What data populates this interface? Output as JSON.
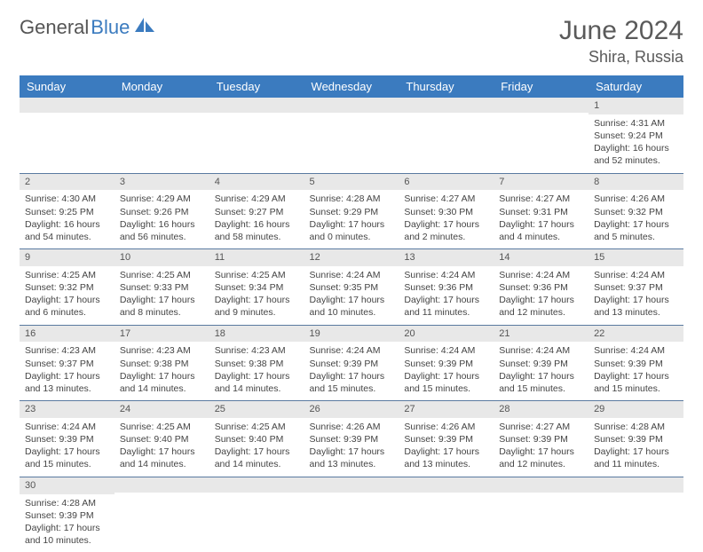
{
  "logo": {
    "text1": "General",
    "text2": "Blue"
  },
  "title": {
    "month": "June 2024",
    "location": "Shira, Russia"
  },
  "colors": {
    "header_bg": "#3b7bbf",
    "header_text": "#ffffff",
    "daynum_bg": "#e8e8e8",
    "row_border": "#5a7aa0",
    "text": "#444444",
    "logo_gray": "#555555",
    "logo_blue": "#3b7bbf"
  },
  "weekdays": [
    "Sunday",
    "Monday",
    "Tuesday",
    "Wednesday",
    "Thursday",
    "Friday",
    "Saturday"
  ],
  "weeks": [
    [
      {
        "n": "",
        "sr": "",
        "ss": "",
        "dl": ""
      },
      {
        "n": "",
        "sr": "",
        "ss": "",
        "dl": ""
      },
      {
        "n": "",
        "sr": "",
        "ss": "",
        "dl": ""
      },
      {
        "n": "",
        "sr": "",
        "ss": "",
        "dl": ""
      },
      {
        "n": "",
        "sr": "",
        "ss": "",
        "dl": ""
      },
      {
        "n": "",
        "sr": "",
        "ss": "",
        "dl": ""
      },
      {
        "n": "1",
        "sr": "Sunrise: 4:31 AM",
        "ss": "Sunset: 9:24 PM",
        "dl": "Daylight: 16 hours and 52 minutes."
      }
    ],
    [
      {
        "n": "2",
        "sr": "Sunrise: 4:30 AM",
        "ss": "Sunset: 9:25 PM",
        "dl": "Daylight: 16 hours and 54 minutes."
      },
      {
        "n": "3",
        "sr": "Sunrise: 4:29 AM",
        "ss": "Sunset: 9:26 PM",
        "dl": "Daylight: 16 hours and 56 minutes."
      },
      {
        "n": "4",
        "sr": "Sunrise: 4:29 AM",
        "ss": "Sunset: 9:27 PM",
        "dl": "Daylight: 16 hours and 58 minutes."
      },
      {
        "n": "5",
        "sr": "Sunrise: 4:28 AM",
        "ss": "Sunset: 9:29 PM",
        "dl": "Daylight: 17 hours and 0 minutes."
      },
      {
        "n": "6",
        "sr": "Sunrise: 4:27 AM",
        "ss": "Sunset: 9:30 PM",
        "dl": "Daylight: 17 hours and 2 minutes."
      },
      {
        "n": "7",
        "sr": "Sunrise: 4:27 AM",
        "ss": "Sunset: 9:31 PM",
        "dl": "Daylight: 17 hours and 4 minutes."
      },
      {
        "n": "8",
        "sr": "Sunrise: 4:26 AM",
        "ss": "Sunset: 9:32 PM",
        "dl": "Daylight: 17 hours and 5 minutes."
      }
    ],
    [
      {
        "n": "9",
        "sr": "Sunrise: 4:25 AM",
        "ss": "Sunset: 9:32 PM",
        "dl": "Daylight: 17 hours and 6 minutes."
      },
      {
        "n": "10",
        "sr": "Sunrise: 4:25 AM",
        "ss": "Sunset: 9:33 PM",
        "dl": "Daylight: 17 hours and 8 minutes."
      },
      {
        "n": "11",
        "sr": "Sunrise: 4:25 AM",
        "ss": "Sunset: 9:34 PM",
        "dl": "Daylight: 17 hours and 9 minutes."
      },
      {
        "n": "12",
        "sr": "Sunrise: 4:24 AM",
        "ss": "Sunset: 9:35 PM",
        "dl": "Daylight: 17 hours and 10 minutes."
      },
      {
        "n": "13",
        "sr": "Sunrise: 4:24 AM",
        "ss": "Sunset: 9:36 PM",
        "dl": "Daylight: 17 hours and 11 minutes."
      },
      {
        "n": "14",
        "sr": "Sunrise: 4:24 AM",
        "ss": "Sunset: 9:36 PM",
        "dl": "Daylight: 17 hours and 12 minutes."
      },
      {
        "n": "15",
        "sr": "Sunrise: 4:24 AM",
        "ss": "Sunset: 9:37 PM",
        "dl": "Daylight: 17 hours and 13 minutes."
      }
    ],
    [
      {
        "n": "16",
        "sr": "Sunrise: 4:23 AM",
        "ss": "Sunset: 9:37 PM",
        "dl": "Daylight: 17 hours and 13 minutes."
      },
      {
        "n": "17",
        "sr": "Sunrise: 4:23 AM",
        "ss": "Sunset: 9:38 PM",
        "dl": "Daylight: 17 hours and 14 minutes."
      },
      {
        "n": "18",
        "sr": "Sunrise: 4:23 AM",
        "ss": "Sunset: 9:38 PM",
        "dl": "Daylight: 17 hours and 14 minutes."
      },
      {
        "n": "19",
        "sr": "Sunrise: 4:24 AM",
        "ss": "Sunset: 9:39 PM",
        "dl": "Daylight: 17 hours and 15 minutes."
      },
      {
        "n": "20",
        "sr": "Sunrise: 4:24 AM",
        "ss": "Sunset: 9:39 PM",
        "dl": "Daylight: 17 hours and 15 minutes."
      },
      {
        "n": "21",
        "sr": "Sunrise: 4:24 AM",
        "ss": "Sunset: 9:39 PM",
        "dl": "Daylight: 17 hours and 15 minutes."
      },
      {
        "n": "22",
        "sr": "Sunrise: 4:24 AM",
        "ss": "Sunset: 9:39 PM",
        "dl": "Daylight: 17 hours and 15 minutes."
      }
    ],
    [
      {
        "n": "23",
        "sr": "Sunrise: 4:24 AM",
        "ss": "Sunset: 9:39 PM",
        "dl": "Daylight: 17 hours and 15 minutes."
      },
      {
        "n": "24",
        "sr": "Sunrise: 4:25 AM",
        "ss": "Sunset: 9:40 PM",
        "dl": "Daylight: 17 hours and 14 minutes."
      },
      {
        "n": "25",
        "sr": "Sunrise: 4:25 AM",
        "ss": "Sunset: 9:40 PM",
        "dl": "Daylight: 17 hours and 14 minutes."
      },
      {
        "n": "26",
        "sr": "Sunrise: 4:26 AM",
        "ss": "Sunset: 9:39 PM",
        "dl": "Daylight: 17 hours and 13 minutes."
      },
      {
        "n": "27",
        "sr": "Sunrise: 4:26 AM",
        "ss": "Sunset: 9:39 PM",
        "dl": "Daylight: 17 hours and 13 minutes."
      },
      {
        "n": "28",
        "sr": "Sunrise: 4:27 AM",
        "ss": "Sunset: 9:39 PM",
        "dl": "Daylight: 17 hours and 12 minutes."
      },
      {
        "n": "29",
        "sr": "Sunrise: 4:28 AM",
        "ss": "Sunset: 9:39 PM",
        "dl": "Daylight: 17 hours and 11 minutes."
      }
    ],
    [
      {
        "n": "30",
        "sr": "Sunrise: 4:28 AM",
        "ss": "Sunset: 9:39 PM",
        "dl": "Daylight: 17 hours and 10 minutes."
      },
      {
        "n": "",
        "sr": "",
        "ss": "",
        "dl": ""
      },
      {
        "n": "",
        "sr": "",
        "ss": "",
        "dl": ""
      },
      {
        "n": "",
        "sr": "",
        "ss": "",
        "dl": ""
      },
      {
        "n": "",
        "sr": "",
        "ss": "",
        "dl": ""
      },
      {
        "n": "",
        "sr": "",
        "ss": "",
        "dl": ""
      },
      {
        "n": "",
        "sr": "",
        "ss": "",
        "dl": ""
      }
    ]
  ]
}
